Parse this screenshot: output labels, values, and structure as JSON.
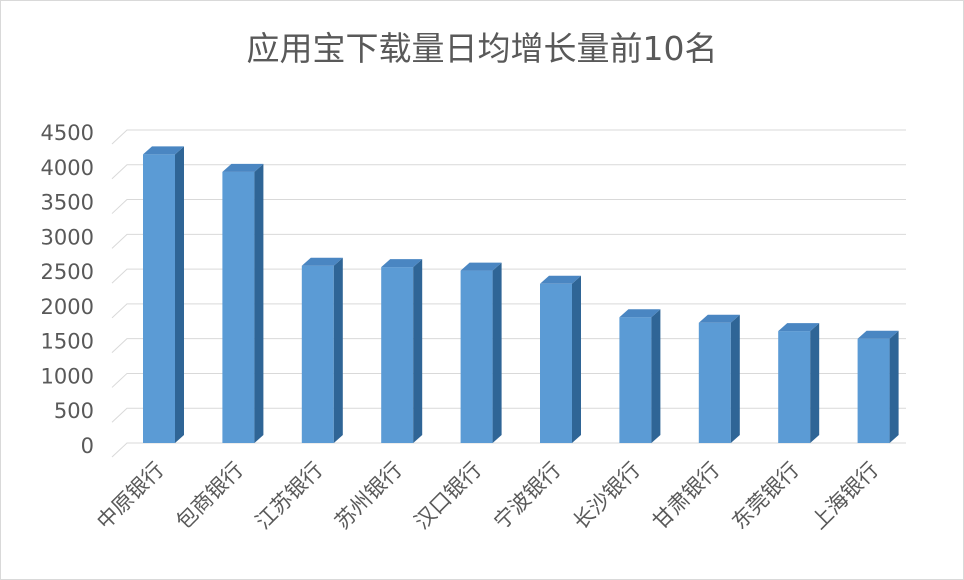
{
  "chart_data": {
    "type": "bar",
    "title": "应用宝下载量日均增长量前10名",
    "categories": [
      "中原银行",
      "包商银行",
      "江苏银行",
      "苏州银行",
      "汉口银行",
      "宁波银行",
      "长沙银行",
      "甘肃银行",
      "东莞银行",
      "上海银行"
    ],
    "values": [
      4350,
      4100,
      2750,
      2730,
      2680,
      2490,
      2010,
      1930,
      1810,
      1700
    ],
    "yticks": [
      "0",
      "500",
      "1000",
      "1500",
      "2000",
      "2500",
      "3000",
      "3500",
      "4000",
      "4500"
    ],
    "ylim": [
      0,
      4500
    ],
    "xlabel": "",
    "ylabel": "",
    "grid": true,
    "bar_style": "3d-column",
    "colors": {
      "front": "#5b9bd5",
      "top": "#4a86c2",
      "side": "#2f6596",
      "grid": "#d9d9d9",
      "text": "#595959"
    }
  }
}
